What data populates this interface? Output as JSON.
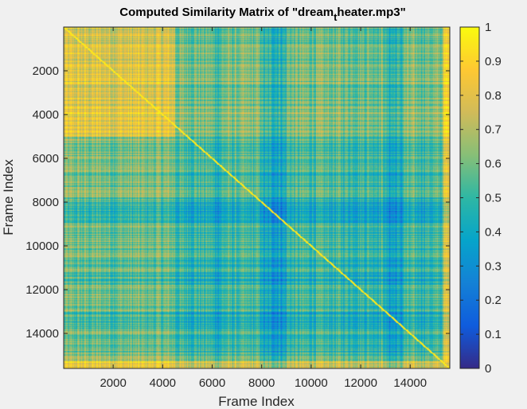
{
  "chart_data": {
    "type": "heatmap",
    "title_main": "Computed Similarity Matrix of \"dream",
    "title_sub": "t",
    "title_rest": "heater.mp3\"",
    "xlabel": "Frame Index",
    "ylabel": "Frame Index",
    "x_range": [
      1,
      15600
    ],
    "y_range": [
      1,
      15600
    ],
    "x_ticks": [
      2000,
      4000,
      6000,
      8000,
      10000,
      12000,
      14000
    ],
    "y_ticks": [
      2000,
      4000,
      6000,
      8000,
      10000,
      12000,
      14000
    ],
    "color_range": [
      0,
      1
    ],
    "colorbar_ticks": [
      0,
      0.1,
      0.2,
      0.3,
      0.4,
      0.5,
      0.6,
      0.7,
      0.8,
      0.9,
      1
    ],
    "colormap": "parula",
    "colormap_stops": [
      "#352a87",
      "#0f5cdd",
      "#1481d6",
      "#06a4ca",
      "#2eb7a4",
      "#87bf77",
      "#d1bb59",
      "#fec832",
      "#f9fb0e"
    ],
    "y_direction": "reverse"
  }
}
